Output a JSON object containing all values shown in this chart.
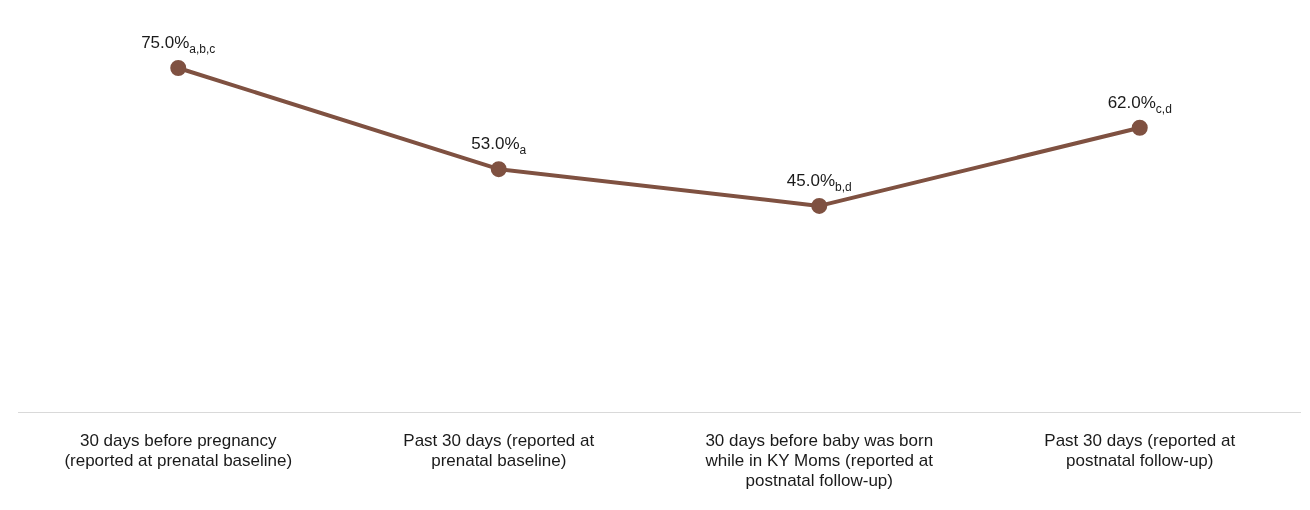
{
  "chart_data": {
    "type": "line",
    "categories": [
      "30 days before pregnancy (reported at prenatal baseline)",
      "Past 30 days (reported at prenatal baseline)",
      "30 days before baby was born while in KY Moms (reported at postnatal follow-up)",
      "Past 30 days (reported at postnatal follow-up)"
    ],
    "series": [
      {
        "color": "#7f5141",
        "values": [
          75,
          53,
          45,
          62
        ],
        "value_labels": [
          "75.0%$_{a,b,c}$",
          "53.0%$_{a}$",
          "45.0%$_{b,d}$",
          "62.0%$_{c,d}$"
        ]
      }
    ],
    "tick_labels": "x",
    "grid": false,
    "legend": false,
    "marker": "circle",
    "line_style": "solid"
  }
}
